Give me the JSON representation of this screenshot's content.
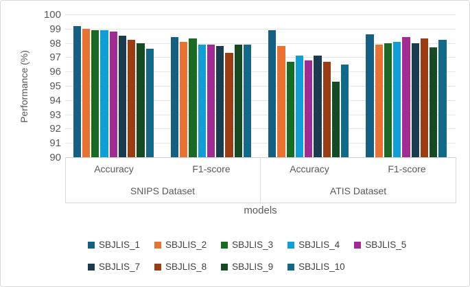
{
  "chart_data": {
    "type": "bar",
    "title": "",
    "xlabel": "models",
    "ylabel": "Performance (%)",
    "ylim": [
      90,
      100
    ],
    "yticks": [
      90,
      91,
      92,
      93,
      94,
      95,
      96,
      97,
      98,
      99,
      100
    ],
    "grid": true,
    "legend_position": "bottom",
    "categories": [
      "SNIPS Accuracy",
      "SNIPS F1-score",
      "ATIS Accuracy",
      "ATIS F1-score"
    ],
    "group_labels": [
      {
        "dataset": "SNIPS Dataset",
        "measures": [
          "Accuracy",
          "F1-score"
        ]
      },
      {
        "dataset": "ATIS Dataset",
        "measures": [
          "Accuracy",
          "F1-score"
        ]
      }
    ],
    "series": [
      {
        "name": "SBJLIS_1",
        "color": "#156082",
        "values": [
          99.2,
          98.4,
          98.9,
          98.6
        ]
      },
      {
        "name": "SBJLIS_2",
        "color": "#E97132",
        "values": [
          99.0,
          98.1,
          97.8,
          97.9
        ]
      },
      {
        "name": "SBJLIS_3",
        "color": "#196B24",
        "values": [
          98.9,
          98.3,
          96.7,
          98.0
        ]
      },
      {
        "name": "SBJLIS_4",
        "color": "#0F9ED5",
        "values": [
          98.9,
          97.9,
          97.1,
          98.1
        ]
      },
      {
        "name": "SBJLIS_5",
        "color": "#A02B93",
        "values": [
          98.8,
          97.9,
          96.8,
          98.4
        ]
      },
      {
        "name": "SBJLIS_7",
        "color": "#1A3C50",
        "values": [
          98.5,
          97.8,
          97.1,
          98.0
        ]
      },
      {
        "name": "SBJLIS_8",
        "color": "#9B3D12",
        "values": [
          98.2,
          97.3,
          96.7,
          98.3
        ]
      },
      {
        "name": "SBJLIS_9",
        "color": "#154A22",
        "values": [
          98.0,
          97.9,
          95.3,
          97.7
        ]
      },
      {
        "name": "SBJLIS_10",
        "color": "#136A88",
        "values": [
          97.6,
          97.9,
          96.5,
          98.2
        ]
      }
    ]
  },
  "style": {
    "grid_color": "#e4e4e4",
    "axis_line_color": "#cfcfcf",
    "box_line_color": "#d9d9d9",
    "text_color": "#595959",
    "figure_border_color": "#d8d8d8",
    "background": "#ffffff"
  }
}
